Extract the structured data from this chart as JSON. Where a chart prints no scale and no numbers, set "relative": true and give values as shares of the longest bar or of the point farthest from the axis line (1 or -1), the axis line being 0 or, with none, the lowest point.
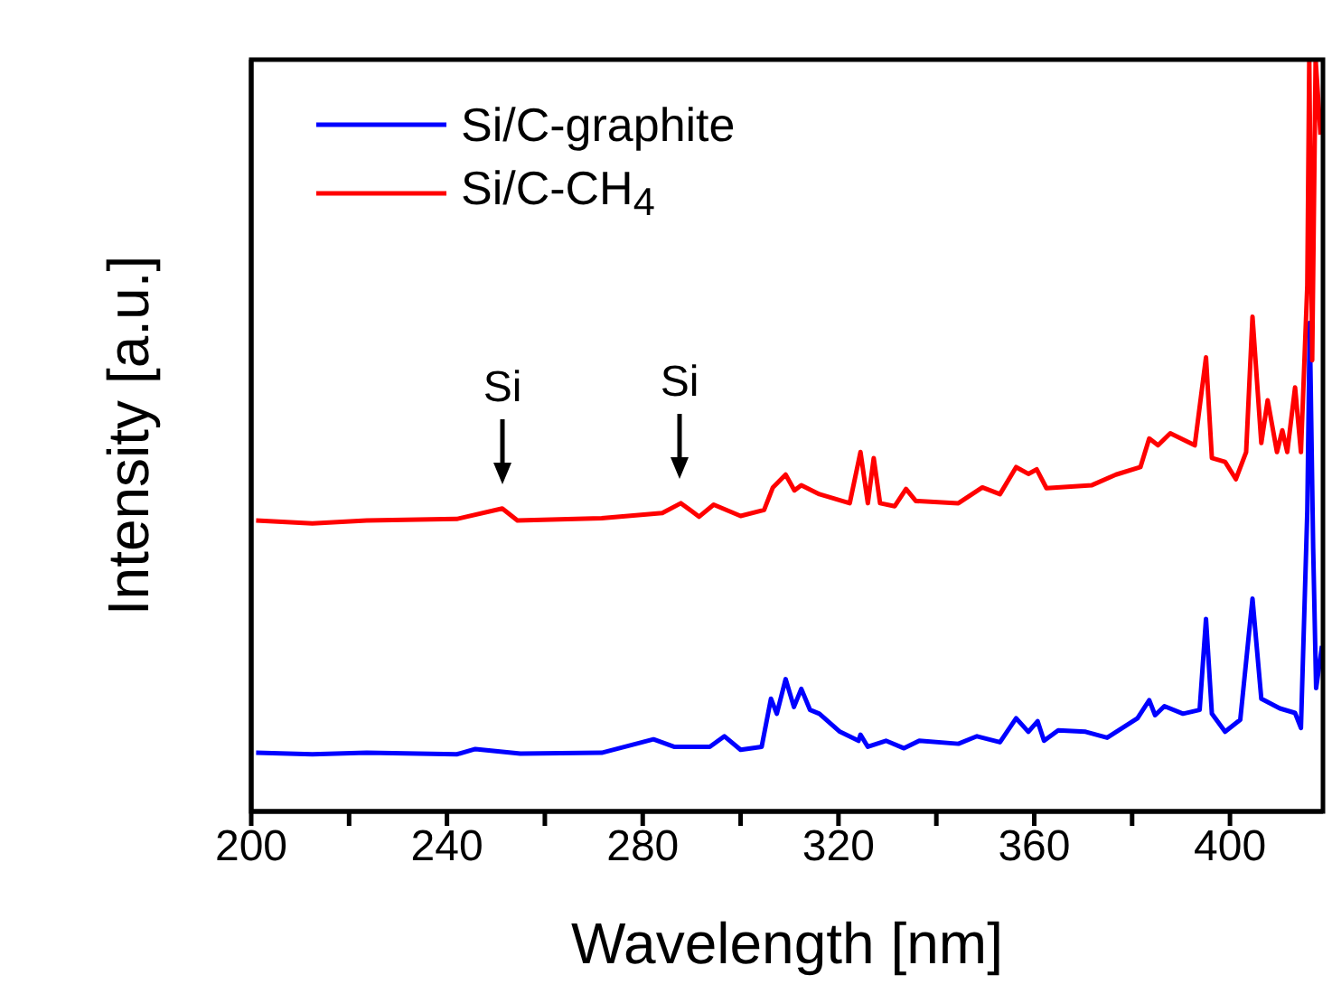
{
  "chart_data": {
    "type": "line",
    "xlabel": "Wavelength [nm]",
    "ylabel": "Intensity [a.u.]",
    "relative": true,
    "xlim": [
      200,
      419
    ],
    "xticks": [
      200,
      {
        "value": 220,
        "label": null
      },
      240,
      {
        "value": 260,
        "label": null
      },
      280,
      {
        "value": 300,
        "label": null
      },
      320,
      {
        "value": 340,
        "label": null
      },
      360,
      {
        "value": 380,
        "label": null
      },
      400
    ],
    "legend": "top left",
    "grid": false,
    "marker": "none",
    "line_style": "solid",
    "annotations": [
      "Si",
      "Si"
    ],
    "series": [
      {
        "name": "Si/C-graphite",
        "color": "#0000ff",
        "x": [
          201,
          212.5,
          223.6,
          242,
          245.8,
          255,
          271.6,
          282.2,
          286.4,
          293.7,
          296.7,
          300,
          304.3,
          306.2,
          307.4,
          309.2,
          310.9,
          312.4,
          314.2,
          316.1,
          320.3,
          324.1,
          324.5,
          326,
          329.7,
          333.4,
          336.5,
          344.5,
          348.3,
          353,
          356.3,
          358.8,
          360.7,
          362,
          364.9,
          370.5,
          374.9,
          381.1,
          383.5,
          384.7,
          386.6,
          390.4,
          393.8,
          395.1,
          396.3,
          399,
          402.1,
          404.6,
          406.4,
          410.2,
          413.3,
          414.5,
          415.8,
          416.3,
          417,
          417.6,
          418.8
        ],
        "values": [
          0.078,
          0.076,
          0.078,
          0.076,
          0.083,
          0.077,
          0.078,
          0.096,
          0.086,
          0.086,
          0.1,
          0.082,
          0.086,
          0.15,
          0.13,
          0.176,
          0.139,
          0.163,
          0.135,
          0.13,
          0.106,
          0.094,
          0.102,
          0.086,
          0.094,
          0.084,
          0.094,
          0.09,
          0.1,
          0.092,
          0.124,
          0.106,
          0.12,
          0.094,
          0.108,
          0.106,
          0.098,
          0.124,
          0.148,
          0.128,
          0.14,
          0.13,
          0.135,
          0.256,
          0.13,
          0.106,
          0.122,
          0.283,
          0.15,
          0.137,
          0.131,
          0.111,
          0.4,
          0.65,
          0.35,
          0.164,
          0.22
        ]
      },
      {
        "name": "Si/C-CH$_{4}$",
        "color": "#ff0000",
        "x": [
          201,
          212.5,
          223.6,
          242,
          251.3,
          254.4,
          271.6,
          284,
          287.8,
          291.5,
          294.5,
          300,
          304.8,
          306.6,
          309.2,
          311,
          312.4,
          316.1,
          322.3,
          324.5,
          326,
          327.2,
          328.5,
          331.5,
          333.8,
          335.8,
          344.5,
          349.4,
          353,
          356.3,
          358.8,
          360.5,
          362.5,
          371.8,
          376.7,
          381.7,
          383.5,
          385.3,
          387.8,
          392.8,
          395.1,
          396.3,
          399,
          401.2,
          403.3,
          404.6,
          406.4,
          407.7,
          409.6,
          410.7,
          411.7,
          413.3,
          414.5,
          415.8,
          416.2,
          416.8,
          417.5,
          418.5
        ],
        "values": [
          0.387,
          0.383,
          0.387,
          0.389,
          0.403,
          0.387,
          0.39,
          0.397,
          0.41,
          0.392,
          0.408,
          0.393,
          0.401,
          0.431,
          0.448,
          0.427,
          0.434,
          0.422,
          0.41,
          0.478,
          0.41,
          0.47,
          0.41,
          0.406,
          0.429,
          0.413,
          0.41,
          0.431,
          0.422,
          0.458,
          0.449,
          0.455,
          0.43,
          0.434,
          0.448,
          0.458,
          0.496,
          0.487,
          0.503,
          0.487,
          0.604,
          0.47,
          0.465,
          0.442,
          0.478,
          0.658,
          0.49,
          0.547,
          0.478,
          0.507,
          0.478,
          0.564,
          0.478,
          0.7,
          1.0,
          0.6,
          1.0,
          0.9
        ]
      }
    ]
  }
}
